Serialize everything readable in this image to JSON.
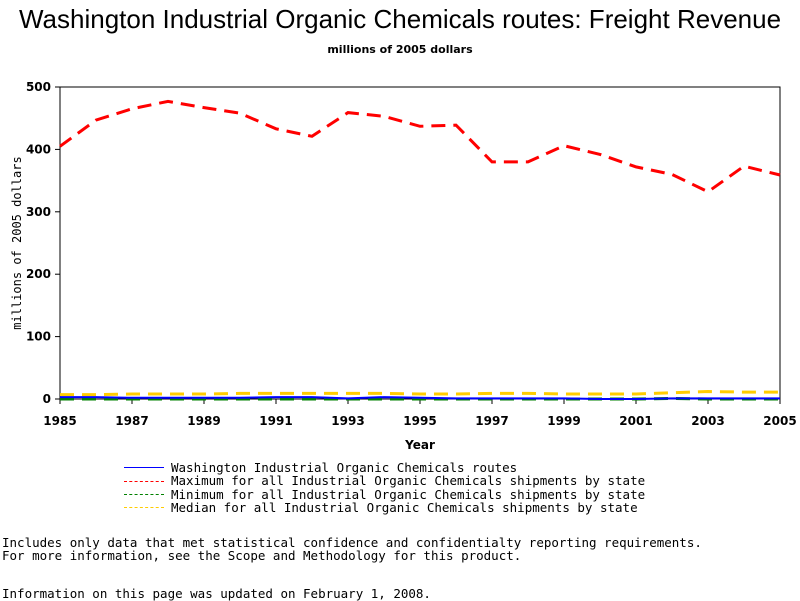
{
  "chart_data": {
    "type": "line",
    "title": "Washington Industrial Organic Chemicals routes: Freight Revenue",
    "subtitle": "millions of 2005 dollars",
    "xlabel": "Year",
    "ylabel": "millions of 2005 dollars",
    "xlim": [
      1985,
      2005
    ],
    "ylim": [
      0,
      500
    ],
    "xticks": [
      "1985",
      "1987",
      "1989",
      "1991",
      "1993",
      "1995",
      "1997",
      "1999",
      "2001",
      "2003",
      "2005"
    ],
    "yticks": [
      "0",
      "100",
      "200",
      "300",
      "400",
      "500"
    ],
    "grid": false,
    "legend_position": "bottom",
    "x": [
      1985,
      1986,
      1987,
      1988,
      1989,
      1990,
      1991,
      1992,
      1993,
      1994,
      1995,
      1996,
      1997,
      1998,
      1999,
      2000,
      2001,
      2002,
      2003,
      2004,
      2005
    ],
    "series": [
      {
        "name": "Washington Industrial Organic Chemicals routes",
        "color": "#0000ff",
        "dash": "solid",
        "values": [
          3,
          3,
          2,
          2,
          2,
          2,
          3,
          3,
          1,
          3,
          2,
          1,
          1,
          1,
          1,
          0,
          0,
          1,
          1,
          1,
          1
        ]
      },
      {
        "name": "Maximum for all Industrial Organic Chemicals shipments by state",
        "color": "#ff0000",
        "dash": "dashed",
        "values": [
          405,
          447,
          465,
          477,
          467,
          458,
          433,
          421,
          459,
          453,
          437,
          439,
          380,
          380,
          406,
          392,
          372,
          360,
          332,
          373,
          359
        ]
      },
      {
        "name": "Minimum for all Industrial Organic Chemicals shipments by state",
        "color": "#008000",
        "dash": "dashed",
        "values": [
          0,
          0,
          0,
          0,
          0,
          0,
          0,
          0,
          0,
          0,
          0,
          0,
          0,
          0,
          0,
          0,
          0,
          1,
          0,
          0,
          0
        ]
      },
      {
        "name": "Median for all Industrial Organic Chemicals shipments by state",
        "color": "#ffcc00",
        "dash": "dashed",
        "values": [
          7,
          7,
          8,
          8,
          8,
          9,
          9,
          9,
          9,
          9,
          8,
          8,
          9,
          9,
          8,
          8,
          8,
          10,
          12,
          11,
          11
        ]
      }
    ]
  },
  "notes": {
    "line1": "Includes only data that met statistical confidence and confidentialty reporting requirements.",
    "line2": "For more information, see the Scope and Methodology for this product.",
    "updated": "Information on this page was updated on February 1, 2008."
  }
}
